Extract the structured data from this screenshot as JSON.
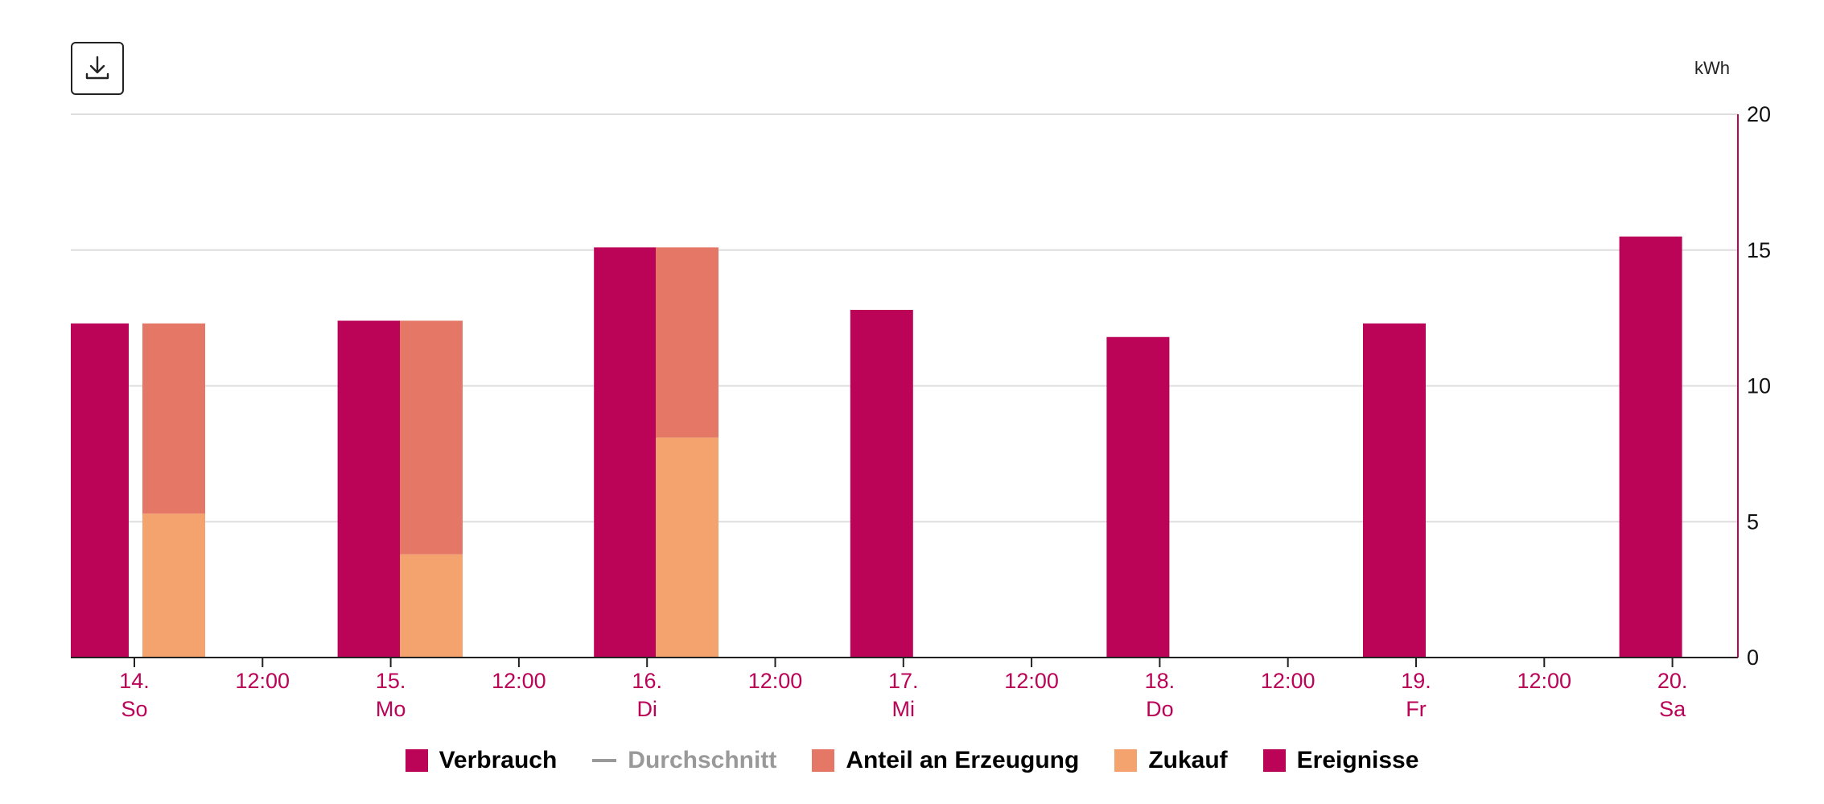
{
  "toolbar": {
    "download_icon": "download-icon"
  },
  "chart_data": {
    "type": "bar",
    "unit": "kWh",
    "y_axis": {
      "position": "right",
      "ylim": [
        0,
        20
      ],
      "ticks": [
        0,
        5,
        10,
        15,
        20
      ]
    },
    "x_axis": {
      "ticks": [
        {
          "x": 0,
          "line1": "14.",
          "line2": "So"
        },
        {
          "x": 0.5,
          "line1": "12:00",
          "line2": ""
        },
        {
          "x": 1,
          "line1": "15.",
          "line2": "Mo"
        },
        {
          "x": 1.5,
          "line1": "12:00",
          "line2": ""
        },
        {
          "x": 2,
          "line1": "16.",
          "line2": "Di"
        },
        {
          "x": 2.5,
          "line1": "12:00",
          "line2": ""
        },
        {
          "x": 3,
          "line1": "17.",
          "line2": "Mi"
        },
        {
          "x": 3.5,
          "line1": "12:00",
          "line2": ""
        },
        {
          "x": 4,
          "line1": "18.",
          "line2": "Do"
        },
        {
          "x": 4.5,
          "line1": "12:00",
          "line2": ""
        },
        {
          "x": 5,
          "line1": "19.",
          "line2": "Fr"
        },
        {
          "x": 5.5,
          "line1": "12:00",
          "line2": ""
        },
        {
          "x": 6,
          "line1": "20.",
          "line2": "Sa"
        }
      ]
    },
    "days": [
      "14. So",
      "15. Mo",
      "16. Di",
      "17. Mi",
      "18. Do",
      "19. Fr",
      "20. Sa"
    ],
    "series": [
      {
        "name": "Verbrauch",
        "color": "#bb0358",
        "values": [
          12.3,
          12.4,
          15.1,
          12.8,
          11.8,
          12.3,
          15.5
        ]
      },
      {
        "name": "Zukauf",
        "color": "#f4a26e",
        "values": [
          5.3,
          3.8,
          8.1,
          null,
          null,
          null,
          null
        ]
      },
      {
        "name": "Anteil an Erzeugung",
        "color": "#e47765",
        "values": [
          7.0,
          8.6,
          7.0,
          null,
          null,
          null,
          null
        ]
      }
    ],
    "legend": [
      {
        "label": "Verbrauch",
        "kind": "swatch",
        "color": "#bb0358",
        "muted": false
      },
      {
        "label": "Durchschnitt",
        "kind": "line",
        "color": "#999999",
        "muted": true
      },
      {
        "label": "Anteil an Erzeugung",
        "kind": "swatch",
        "color": "#e47765",
        "muted": false
      },
      {
        "label": "Zukauf",
        "kind": "swatch",
        "color": "#f4a26e",
        "muted": false
      },
      {
        "label": "Ereignisse",
        "kind": "swatch",
        "color": "#bb0358",
        "muted": false
      }
    ],
    "grid": true,
    "colors": {
      "axis_label": "#bb0358",
      "grid": "#dddddd",
      "axis": "#222222"
    }
  }
}
